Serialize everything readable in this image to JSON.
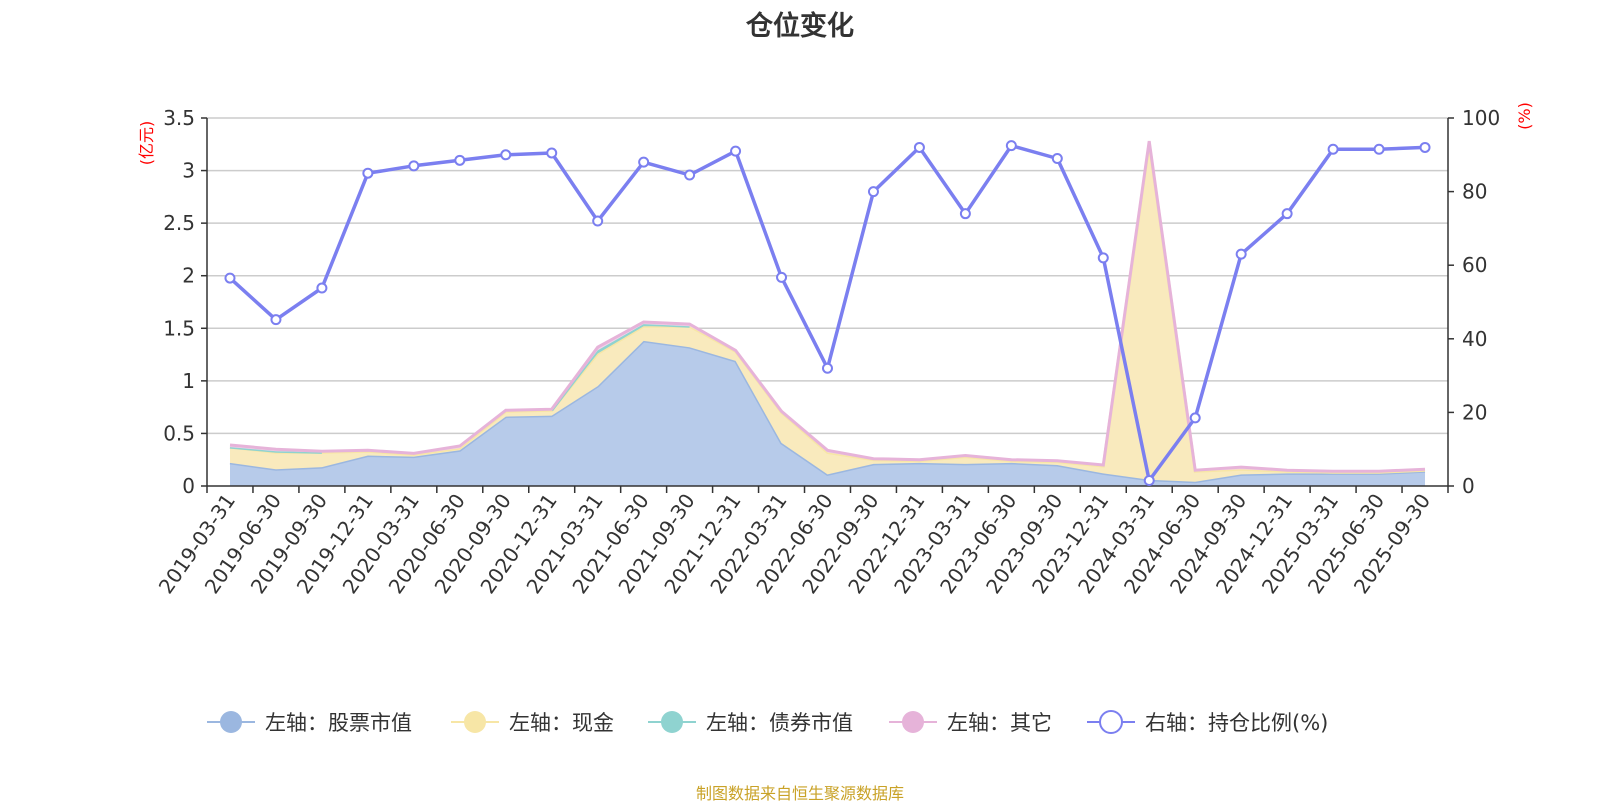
{
  "title": "仓位变化",
  "source_note": "制图数据来自恒生聚源数据库",
  "chart_data": {
    "type": "area",
    "left_axis": {
      "unit": "(亿元)",
      "min": 0,
      "max": 3.5,
      "ticks": [
        0,
        0.5,
        1,
        1.5,
        2,
        2.5,
        3,
        3.5
      ]
    },
    "right_axis": {
      "unit": "(%)",
      "min": 0,
      "max": 100,
      "ticks": [
        0,
        20,
        40,
        60,
        80,
        100
      ]
    },
    "categories": [
      "2019-03-31",
      "2019-06-30",
      "2019-09-30",
      "2019-12-31",
      "2020-03-31",
      "2020-06-30",
      "2020-09-30",
      "2020-12-31",
      "2021-03-31",
      "2021-06-30",
      "2021-09-30",
      "2021-12-31",
      "2022-03-31",
      "2022-06-30",
      "2022-09-30",
      "2022-12-31",
      "2023-03-31",
      "2023-06-30",
      "2023-09-30",
      "2023-12-31",
      "2024-03-31",
      "2024-06-30",
      "2024-09-30",
      "2024-12-31",
      "2025-03-31",
      "2025-06-30",
      "2025-09-30"
    ],
    "series": [
      {
        "name": "左轴：股票市值",
        "axis": "left",
        "color": "#9bb7e0",
        "fill": "#b7cbea",
        "values": [
          0.22,
          0.16,
          0.18,
          0.29,
          0.28,
          0.34,
          0.66,
          0.67,
          0.95,
          1.38,
          1.32,
          1.19,
          0.41,
          0.11,
          0.21,
          0.22,
          0.21,
          0.22,
          0.2,
          0.12,
          0.06,
          0.04,
          0.11,
          0.12,
          0.12,
          0.12,
          0.14
        ]
      },
      {
        "name": "左轴：现金",
        "axis": "left",
        "color": "#f7e6a6",
        "fill": "#f9eabd",
        "values": [
          0.15,
          0.16,
          0.14,
          0.04,
          0.02,
          0.02,
          0.05,
          0.05,
          0.31,
          0.14,
          0.2,
          0.09,
          0.29,
          0.21,
          0.04,
          0.02,
          0.07,
          0.02,
          0.03,
          0.07,
          3.2,
          0.1,
          0.05,
          0.02,
          0.01,
          0.01,
          0.01
        ]
      },
      {
        "name": "左轴：债券市值",
        "axis": "left",
        "color": "#8fd3d0",
        "fill": "#8fd3d0",
        "values": [
          0,
          0.01,
          0,
          0,
          0,
          0,
          0,
          0,
          0.03,
          0.02,
          0,
          0,
          0,
          0,
          0,
          0,
          0,
          0,
          0,
          0,
          0,
          0,
          0,
          0,
          0,
          0,
          0
        ]
      },
      {
        "name": "左轴：其它",
        "axis": "left",
        "color": "#e6b3d9",
        "fill": "#f2d3ea",
        "values": [
          0.02,
          0.02,
          0.01,
          0.01,
          0.01,
          0.02,
          0.01,
          0.01,
          0.03,
          0.02,
          0.02,
          0.01,
          0.01,
          0.02,
          0.01,
          0.01,
          0.01,
          0.01,
          0.01,
          0.01,
          0.02,
          0.01,
          0.02,
          0.01,
          0.01,
          0.01,
          0.01
        ]
      },
      {
        "name": "右轴：持仓比例(%)",
        "axis": "right",
        "color": "#7b7ff0",
        "values": [
          56.5,
          45.2,
          53.8,
          85.0,
          87.0,
          88.5,
          90.0,
          90.5,
          72.0,
          88.0,
          84.5,
          91.0,
          56.7,
          32.0,
          80.0,
          92.0,
          74.0,
          92.5,
          89.0,
          62.0,
          1.5,
          18.5,
          63.0,
          74.0,
          91.5,
          91.5,
          92.0
        ]
      }
    ],
    "legend_position": "bottom",
    "grid": true
  }
}
